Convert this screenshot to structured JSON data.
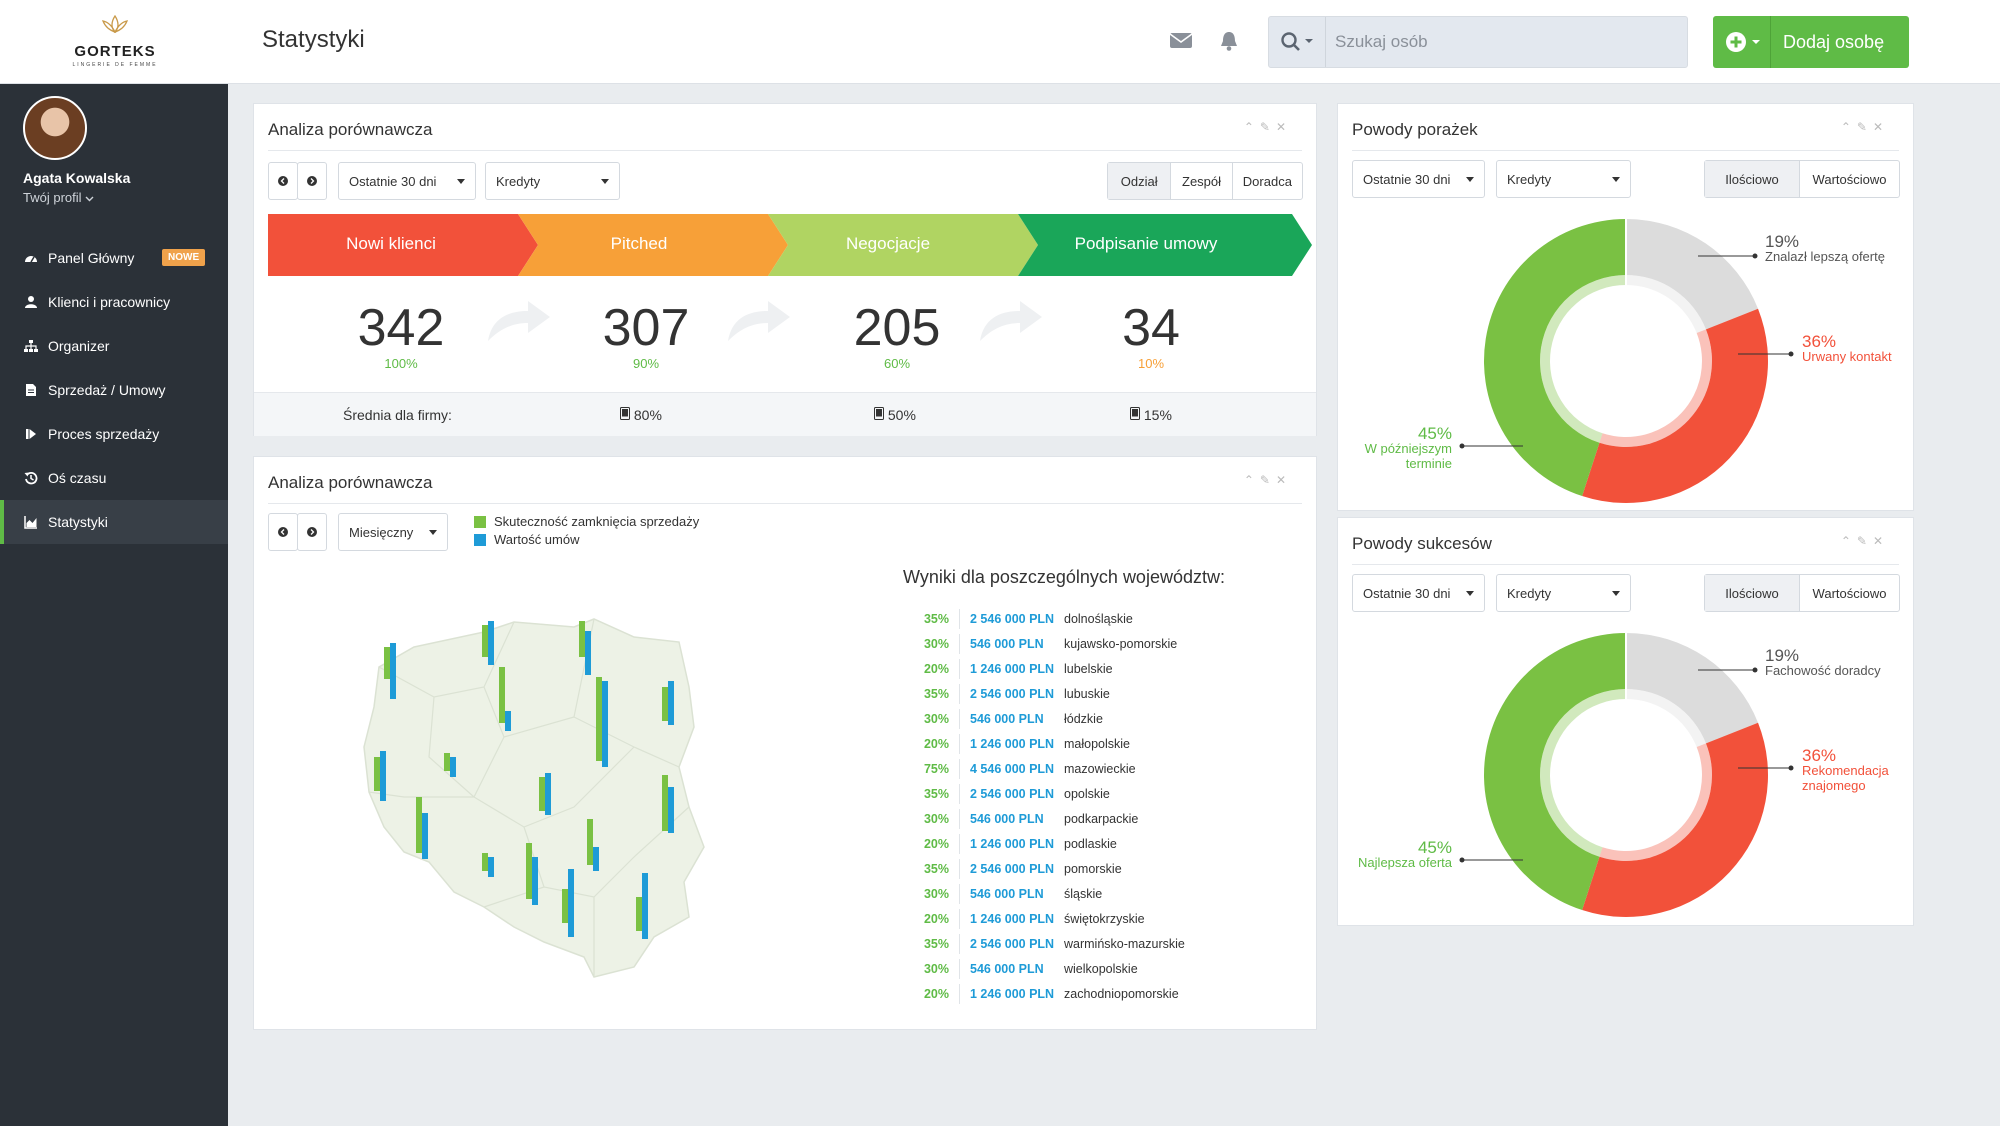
{
  "brand": {
    "name": "GORTEKS",
    "tagline": "LINGERIE DE FEMME"
  },
  "header": {
    "title": "Statystyki",
    "search_placeholder": "Szukaj osób",
    "add_label": "Dodaj osobę"
  },
  "user": {
    "name": "Agata Kowalska",
    "profile_link": "Twój profil"
  },
  "sidebar": {
    "items": [
      {
        "label": "Panel Główny",
        "icon": "dashboard-icon",
        "badge": "NOWE"
      },
      {
        "label": "Klienci i pracownicy",
        "icon": "user-icon"
      },
      {
        "label": "Organizer",
        "icon": "sitemap-icon"
      },
      {
        "label": "Sprzedaż / Umowy",
        "icon": "document-icon"
      },
      {
        "label": "Proces sprzedaży",
        "icon": "step-forward-icon"
      },
      {
        "label": "Oś czasu",
        "icon": "history-icon"
      },
      {
        "label": "Statystyki",
        "icon": "area-chart-icon",
        "active": true
      }
    ]
  },
  "comparison": {
    "title": "Analiza porównawcza",
    "period": "Ostatnie 30 dni",
    "metric": "Kredyty",
    "tabs": [
      "Odział",
      "Zespół",
      "Doradca"
    ],
    "active_tab": "Odział",
    "stages": [
      {
        "label": "Nowi klienci",
        "value": "342",
        "pct": "100%",
        "color": "#f2513a",
        "pct_color": "#5fbb46"
      },
      {
        "label": "Pitched",
        "value": "307",
        "pct": "90%",
        "color": "#f7a038",
        "pct_color": "#5fbb46"
      },
      {
        "label": "Negocjacje",
        "value": "205",
        "pct": "60%",
        "color": "#b0d462",
        "pct_color": "#5fbb46"
      },
      {
        "label": "Podpisanie umowy",
        "value": "34",
        "pct": "10%",
        "color": "#1aa659",
        "pct_color": "#f7a038"
      }
    ],
    "average_label": "Średnia dla firmy:",
    "averages": [
      "80%",
      "50%",
      "15%"
    ]
  },
  "regional": {
    "title": "Analiza porównawcza",
    "period": "Miesięczny",
    "legend": [
      {
        "label": "Skuteczność zamknięcia sprzedaży",
        "color": "#7ac143"
      },
      {
        "label": "Wartość umów",
        "color": "#1e9bd7"
      }
    ],
    "results_title": "Wyniki dla poszczególnych województw:",
    "rows": [
      {
        "pct": "35%",
        "value": "2 546 000 PLN",
        "name": "dolnośląskie"
      },
      {
        "pct": "30%",
        "value": "546 000 PLN",
        "name": "kujawsko-pomorskie"
      },
      {
        "pct": "20%",
        "value": "1 246 000 PLN",
        "name": "lubelskie"
      },
      {
        "pct": "35%",
        "value": "2 546 000 PLN",
        "name": "lubuskie"
      },
      {
        "pct": "30%",
        "value": "546 000 PLN",
        "name": "łódzkie"
      },
      {
        "pct": "20%",
        "value": "1 246 000 PLN",
        "name": "małopolskie"
      },
      {
        "pct": "75%",
        "value": "4 546 000 PLN",
        "name": "mazowieckie"
      },
      {
        "pct": "35%",
        "value": "2 546 000 PLN",
        "name": "opolskie"
      },
      {
        "pct": "30%",
        "value": "546 000 PLN",
        "name": "podkarpackie"
      },
      {
        "pct": "20%",
        "value": "1 246 000 PLN",
        "name": "podlaskie"
      },
      {
        "pct": "35%",
        "value": "2 546 000 PLN",
        "name": "pomorskie"
      },
      {
        "pct": "30%",
        "value": "546 000 PLN",
        "name": "śląskie"
      },
      {
        "pct": "20%",
        "value": "1 246 000 PLN",
        "name": "świętokrzyskie"
      },
      {
        "pct": "35%",
        "value": "2 546 000 PLN",
        "name": "warmińsko-mazurskie"
      },
      {
        "pct": "30%",
        "value": "546 000 PLN",
        "name": "wielkopolskie"
      },
      {
        "pct": "20%",
        "value": "1 246 000 PLN",
        "name": "zachodniopomorskie"
      }
    ]
  },
  "failures": {
    "title": "Powody porażek",
    "period": "Ostatnie 30 dni",
    "metric": "Kredyty",
    "tabs": [
      "Ilościowo",
      "Wartościowo"
    ],
    "active_tab": "Ilościowo",
    "labels": [
      {
        "pct": "19%",
        "text": "Znalazł lepszą ofertę"
      },
      {
        "pct": "36%",
        "text": "Urwany kontakt"
      },
      {
        "pct": "45%",
        "text_lines": [
          "W późniejszym",
          "terminie"
        ]
      }
    ]
  },
  "successes": {
    "title": "Powody sukcesów",
    "period": "Ostatnie 30 dni",
    "metric": "Kredyty",
    "tabs": [
      "Ilościowo",
      "Wartościowo"
    ],
    "active_tab": "Ilościowo",
    "labels": [
      {
        "pct": "19%",
        "text": "Fachowość doradcy"
      },
      {
        "pct": "36%",
        "text_lines": [
          "Rekomendacja",
          "znajomego"
        ]
      },
      {
        "pct": "45%",
        "text": "Najlepsza oferta"
      }
    ]
  },
  "chart_data": [
    {
      "type": "pie",
      "title": "Powody porażek",
      "categories": [
        "Znalazł lepszą ofertę",
        "Urwany kontakt",
        "W późniejszym terminie"
      ],
      "values": [
        19,
        36,
        45
      ],
      "colors": [
        "#dcdcdc",
        "#f2513a",
        "#7ac143"
      ]
    },
    {
      "type": "pie",
      "title": "Powody sukcesów",
      "categories": [
        "Fachowość doradcy",
        "Rekomendacja znajomego",
        "Najlepsza oferta"
      ],
      "values": [
        19,
        36,
        45
      ],
      "colors": [
        "#dcdcdc",
        "#f2513a",
        "#7ac143"
      ]
    }
  ]
}
